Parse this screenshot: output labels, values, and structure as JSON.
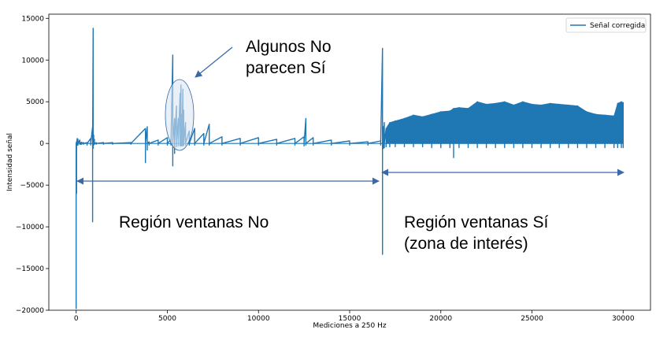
{
  "chart_data": {
    "type": "line",
    "title": "",
    "xlabel": "Mediciones a 250 Hz",
    "ylabel": "Intensidad señal",
    "xlim": [
      -1500,
      31500
    ],
    "ylim": [
      -20000,
      15500
    ],
    "x_ticks": [
      0,
      5000,
      10000,
      15000,
      20000,
      25000,
      30000
    ],
    "y_ticks": [
      -20000,
      -15000,
      -10000,
      -5000,
      0,
      5000,
      10000,
      15000
    ],
    "grid": false,
    "legend_position": "top-right",
    "series": [
      {
        "name": "Señal corregida",
        "color": "#1f77b4",
        "baseline": 0,
        "x": [
          0,
          20,
          60,
          100,
          200,
          250,
          300,
          400,
          600,
          800,
          900,
          930,
          960,
          1000,
          1100,
          1500,
          2000,
          3000,
          3800,
          3900,
          4000,
          4500,
          5000,
          5200,
          5300,
          5400,
          5500,
          5600,
          5700,
          5750,
          5800,
          5850,
          5900,
          6000,
          6200,
          6500,
          7000,
          7300,
          8000,
          9000,
          10000,
          11000,
          12000,
          12500,
          12600,
          13000,
          14000,
          15000,
          16000,
          16700,
          16800,
          16850,
          16900,
          17000,
          17200,
          17500,
          18000,
          18500,
          19000,
          19500,
          20000,
          20500,
          20700,
          21000,
          21500,
          22000,
          22500,
          23000,
          23500,
          24000,
          24500,
          25000,
          25500,
          26000,
          26500,
          27000,
          27500,
          28000,
          28500,
          29000,
          29500,
          29700,
          29900,
          30000
        ],
        "upper": [
          0,
          200,
          600,
          500,
          400,
          100,
          150,
          100,
          100,
          600,
          2000,
          13800,
          1000,
          500,
          100,
          100,
          100,
          100,
          1800,
          2000,
          200,
          400,
          700,
          500,
          10600,
          3000,
          4500,
          3000,
          6000,
          7000,
          3500,
          6500,
          4000,
          2500,
          1500,
          1800,
          1200,
          2300,
          800,
          600,
          700,
          500,
          600,
          800,
          3000,
          700,
          400,
          300,
          200,
          300,
          11400,
          2000,
          2500,
          1800,
          2500,
          2700,
          3000,
          3400,
          3200,
          3500,
          3800,
          3900,
          4200,
          4300,
          4200,
          5000,
          4700,
          4800,
          5000,
          4600,
          5000,
          4700,
          4600,
          4800,
          4700,
          4600,
          4500,
          3800,
          3500,
          3400,
          3300,
          4800,
          5000,
          4900
        ],
        "lower": [
          -19800,
          -6000,
          -200,
          -200,
          -100,
          -100,
          -100,
          -100,
          -200,
          -200,
          -9400,
          -600,
          -200,
          -100,
          -100,
          -100,
          -100,
          -100,
          -2300,
          -800,
          -200,
          -200,
          -200,
          -200,
          -2700,
          -1200,
          -400,
          -300,
          -300,
          -300,
          -300,
          -300,
          -200,
          -200,
          -200,
          -200,
          -200,
          -200,
          -200,
          -200,
          -200,
          -200,
          -200,
          -300,
          -200,
          -200,
          -200,
          -200,
          -200,
          -200,
          -13300,
          -600,
          -500,
          -400,
          -400,
          -400,
          -400,
          -400,
          -400,
          -500,
          -500,
          -500,
          -1700,
          -500,
          -500,
          -500,
          -500,
          -500,
          -500,
          -500,
          -500,
          -500,
          -500,
          -500,
          -500,
          -500,
          -500,
          -500,
          -500,
          -500,
          -500,
          -500,
          -500,
          -500
        ]
      }
    ],
    "annotations": {
      "no_region": "Región ventanas No",
      "yes_region_line1": "Región ventanas Sí",
      "yes_region_line2": "(zona de interés)",
      "callout_line1": "Algunos No",
      "callout_line2": "parecen Sí",
      "annotation_color": "#3a68a8",
      "highlight_fill": "#dbe6f3"
    }
  }
}
